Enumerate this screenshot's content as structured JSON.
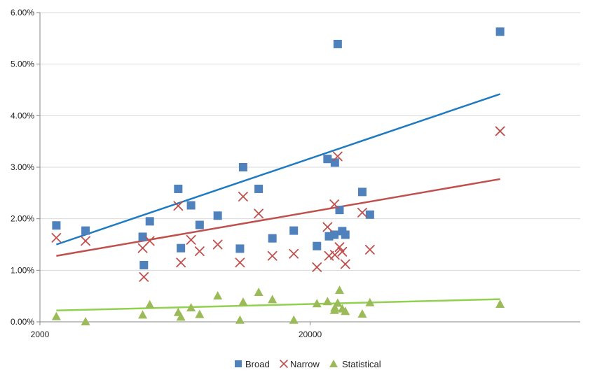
{
  "chart_data": {
    "type": "scatter",
    "title": "",
    "xlabel": "",
    "ylabel": "",
    "x_scale": "log",
    "xlim": [
      2000,
      200000
    ],
    "ylim": [
      0,
      0.06
    ],
    "x_ticks": [
      {
        "value": 2000,
        "label": "2000"
      },
      {
        "value": 20000,
        "label": "20000"
      }
    ],
    "y_ticks": [
      {
        "value": 0.0,
        "label": "0.00%"
      },
      {
        "value": 0.01,
        "label": "1.00%"
      },
      {
        "value": 0.02,
        "label": "2.00%"
      },
      {
        "value": 0.03,
        "label": "3.00%"
      },
      {
        "value": 0.04,
        "label": "4.00%"
      },
      {
        "value": 0.05,
        "label": "5.00%"
      },
      {
        "value": 0.06,
        "label": "6.00%"
      }
    ],
    "grid": "horizontal",
    "legend_position": "bottom",
    "series": [
      {
        "name": "Broad",
        "marker": "square",
        "color": "#4f81bd",
        "trend_color": "#1f7bc1",
        "trendline": [
          [
            2300,
            0.015
          ],
          [
            101000,
            0.0442
          ]
        ],
        "points": [
          [
            2300,
            0.0187
          ],
          [
            2950,
            0.0177
          ],
          [
            4800,
            0.0165
          ],
          [
            4850,
            0.011
          ],
          [
            5100,
            0.0195
          ],
          [
            6500,
            0.0258
          ],
          [
            6650,
            0.0143
          ],
          [
            7250,
            0.0226
          ],
          [
            7800,
            0.0188
          ],
          [
            9100,
            0.0206
          ],
          [
            11000,
            0.0142
          ],
          [
            11300,
            0.03
          ],
          [
            12900,
            0.0258
          ],
          [
            14500,
            0.0162
          ],
          [
            17400,
            0.0177
          ],
          [
            21200,
            0.0147
          ],
          [
            23200,
            0.0316
          ],
          [
            23500,
            0.0166
          ],
          [
            24600,
            0.0169
          ],
          [
            24700,
            0.0309
          ],
          [
            25300,
            0.0539
          ],
          [
            25700,
            0.0217
          ],
          [
            26300,
            0.0176
          ],
          [
            27000,
            0.0169
          ],
          [
            31200,
            0.0252
          ],
          [
            33300,
            0.0208
          ],
          [
            101000,
            0.0563
          ]
        ]
      },
      {
        "name": "Narrow",
        "marker": "x",
        "color": "#c0504d",
        "trend_color": "#c0504d",
        "trendline": [
          [
            2300,
            0.0128
          ],
          [
            101000,
            0.0277
          ]
        ],
        "points": [
          [
            2300,
            0.0163
          ],
          [
            2950,
            0.0157
          ],
          [
            4800,
            0.0143
          ],
          [
            4850,
            0.0087
          ],
          [
            5100,
            0.0157
          ],
          [
            6500,
            0.0225
          ],
          [
            6650,
            0.0115
          ],
          [
            7250,
            0.0159
          ],
          [
            7800,
            0.0137
          ],
          [
            9100,
            0.015
          ],
          [
            11000,
            0.0115
          ],
          [
            11300,
            0.0243
          ],
          [
            12900,
            0.021
          ],
          [
            14500,
            0.0128
          ],
          [
            17400,
            0.0132
          ],
          [
            21200,
            0.0106
          ],
          [
            23200,
            0.0184
          ],
          [
            23500,
            0.0128
          ],
          [
            24600,
            0.0228
          ],
          [
            24700,
            0.013
          ],
          [
            25300,
            0.0321
          ],
          [
            25700,
            0.0145
          ],
          [
            26300,
            0.0136
          ],
          [
            27000,
            0.0112
          ],
          [
            31200,
            0.0212
          ],
          [
            33300,
            0.014
          ],
          [
            101000,
            0.037
          ]
        ]
      },
      {
        "name": "Statistical",
        "marker": "triangle",
        "color": "#9bbb59",
        "trend_color": "#92d050",
        "trendline": [
          [
            2300,
            0.0022
          ],
          [
            101000,
            0.0044
          ]
        ],
        "points": [
          [
            2300,
            0.001
          ],
          [
            2950,
            0.0
          ],
          [
            4800,
            0.0013
          ],
          [
            5100,
            0.0033
          ],
          [
            6500,
            0.0018
          ],
          [
            6650,
            0.0009
          ],
          [
            7250,
            0.0027
          ],
          [
            7800,
            0.0014
          ],
          [
            9100,
            0.005
          ],
          [
            11000,
            0.0003
          ],
          [
            11300,
            0.0038
          ],
          [
            12900,
            0.0057
          ],
          [
            14500,
            0.0043
          ],
          [
            17400,
            0.0003
          ],
          [
            21200,
            0.0035
          ],
          [
            23200,
            0.0039
          ],
          [
            24600,
            0.0022
          ],
          [
            24700,
            0.0027
          ],
          [
            25300,
            0.0036
          ],
          [
            25700,
            0.0061
          ],
          [
            26300,
            0.0025
          ],
          [
            27000,
            0.002
          ],
          [
            31200,
            0.0015
          ],
          [
            33300,
            0.0037
          ],
          [
            101000,
            0.0034
          ]
        ]
      }
    ]
  },
  "legend": {
    "items": [
      {
        "label": "Broad",
        "color": "#4f81bd"
      },
      {
        "label": "Narrow",
        "color": "#c0504d"
      },
      {
        "label": "Statistical",
        "color": "#9bbb59"
      }
    ]
  }
}
